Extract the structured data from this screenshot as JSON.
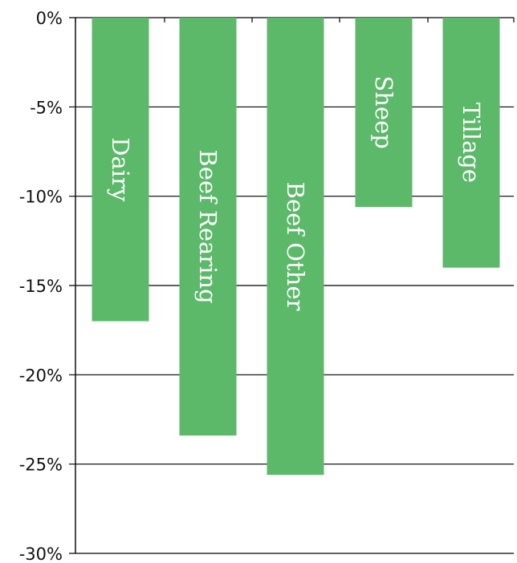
{
  "chart_data": {
    "type": "bar",
    "orientation": "vertical",
    "categories": [
      "Dairy",
      "Beef Rearing",
      "Beef Other",
      "Sheep",
      "Tillage"
    ],
    "values": [
      -17.0,
      -23.4,
      -25.6,
      -10.6,
      -14.0
    ],
    "value_format": "percent",
    "ylim": [
      -30,
      0
    ],
    "y_ticks": [
      0,
      -5,
      -10,
      -15,
      -20,
      -25,
      -30
    ],
    "y_tick_labels": [
      "0%",
      "-5%",
      "-10%",
      "-15%",
      "-20%",
      "-25%",
      "-30%"
    ],
    "title": "",
    "xlabel": "",
    "ylabel": "",
    "grid": "horizontal",
    "legend": "none",
    "category_labels_inside_bars": true,
    "bar_color": "#5cb96a",
    "grid_color": "#000000",
    "label_color": "#ffffff"
  }
}
